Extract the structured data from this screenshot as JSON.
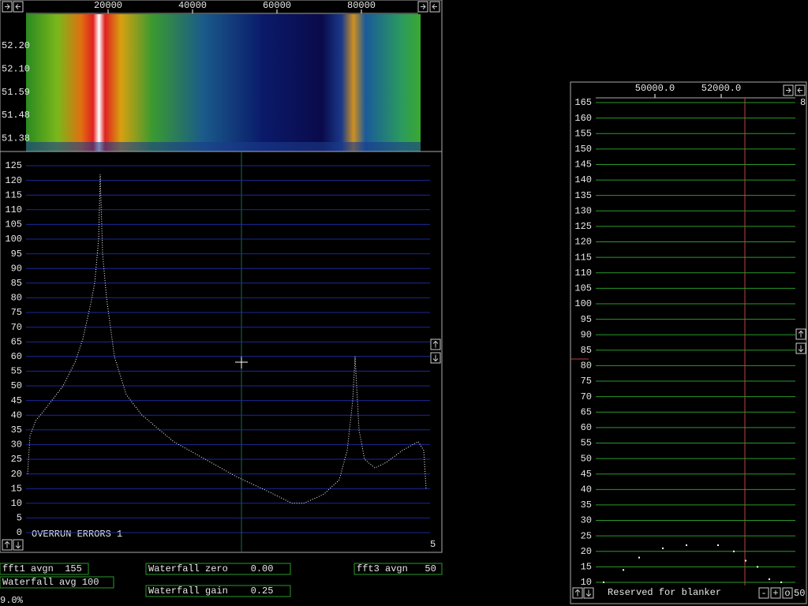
{
  "main_panel": {
    "freq_axis": {
      "xlim": [
        560,
        96260
      ],
      "ticks": [
        20000,
        40000,
        60000,
        80000
      ]
    },
    "waterfall_labels": [
      "52.20",
      "52.10",
      "51.59",
      "51.48",
      "51.38"
    ],
    "spectrum": {
      "ylim": [
        0,
        125
      ],
      "yticks": [
        0,
        5,
        10,
        15,
        20,
        25,
        30,
        35,
        40,
        45,
        50,
        55,
        60,
        65,
        70,
        75,
        80,
        85,
        90,
        95,
        100,
        105,
        110,
        115,
        120,
        125
      ],
      "x": [
        936,
        1500,
        2800,
        5610,
        9350,
        12150,
        14020,
        15890,
        16820,
        17760,
        18130,
        18690,
        19630,
        21500,
        24300,
        28040,
        35510,
        42990,
        50460,
        57940,
        63550,
        66350,
        71020,
        74760,
        76630,
        77940,
        78500,
        79430,
        80740,
        83170,
        85980,
        89710,
        93450,
        94760,
        95320
      ],
      "y": [
        20,
        33,
        38,
        43,
        50,
        58,
        66,
        78,
        85,
        100,
        122,
        95,
        80,
        60,
        47,
        40,
        31,
        25,
        19,
        14,
        10,
        10,
        13,
        18,
        28,
        45,
        60,
        35,
        25,
        22,
        24,
        28,
        31,
        28,
        15
      ]
    },
    "message": "OVERRUN ERRORS 1",
    "corner_value": "5"
  },
  "status": {
    "fft1_avgn": "fft1 avgn  155",
    "waterfall_avg": "Waterfall avg 100",
    "waterfall_zero": "Waterfall zero    0.00",
    "waterfall_gain": "Waterfall gain    0.25",
    "fft3_avgn": "fft3 avgn   50",
    "load": "9.0%"
  },
  "right_panel": {
    "xlim": [
      48214,
      54238
    ],
    "xticks": [
      {
        "value": 50000,
        "label": "50000.0"
      },
      {
        "value": 52000,
        "label": "52000.0"
      }
    ],
    "ylim": [
      10,
      165
    ],
    "yticks": [
      10,
      15,
      20,
      25,
      30,
      35,
      40,
      45,
      50,
      55,
      60,
      65,
      70,
      75,
      80,
      85,
      90,
      95,
      100,
      105,
      110,
      115,
      120,
      125,
      130,
      135,
      140,
      145,
      150,
      155,
      160,
      165
    ],
    "x": [
      48452,
      49048,
      49524,
      50238,
      50952,
      51905,
      52381,
      52738,
      53095,
      53452,
      53810
    ],
    "y": [
      10,
      14,
      18,
      21,
      22,
      22,
      20,
      17,
      15,
      11,
      10
    ],
    "corner_value": "8",
    "blanker_label": "Reserved for blanker",
    "buttons": [
      "-",
      "+",
      "o"
    ],
    "bottom_value": "50"
  }
}
